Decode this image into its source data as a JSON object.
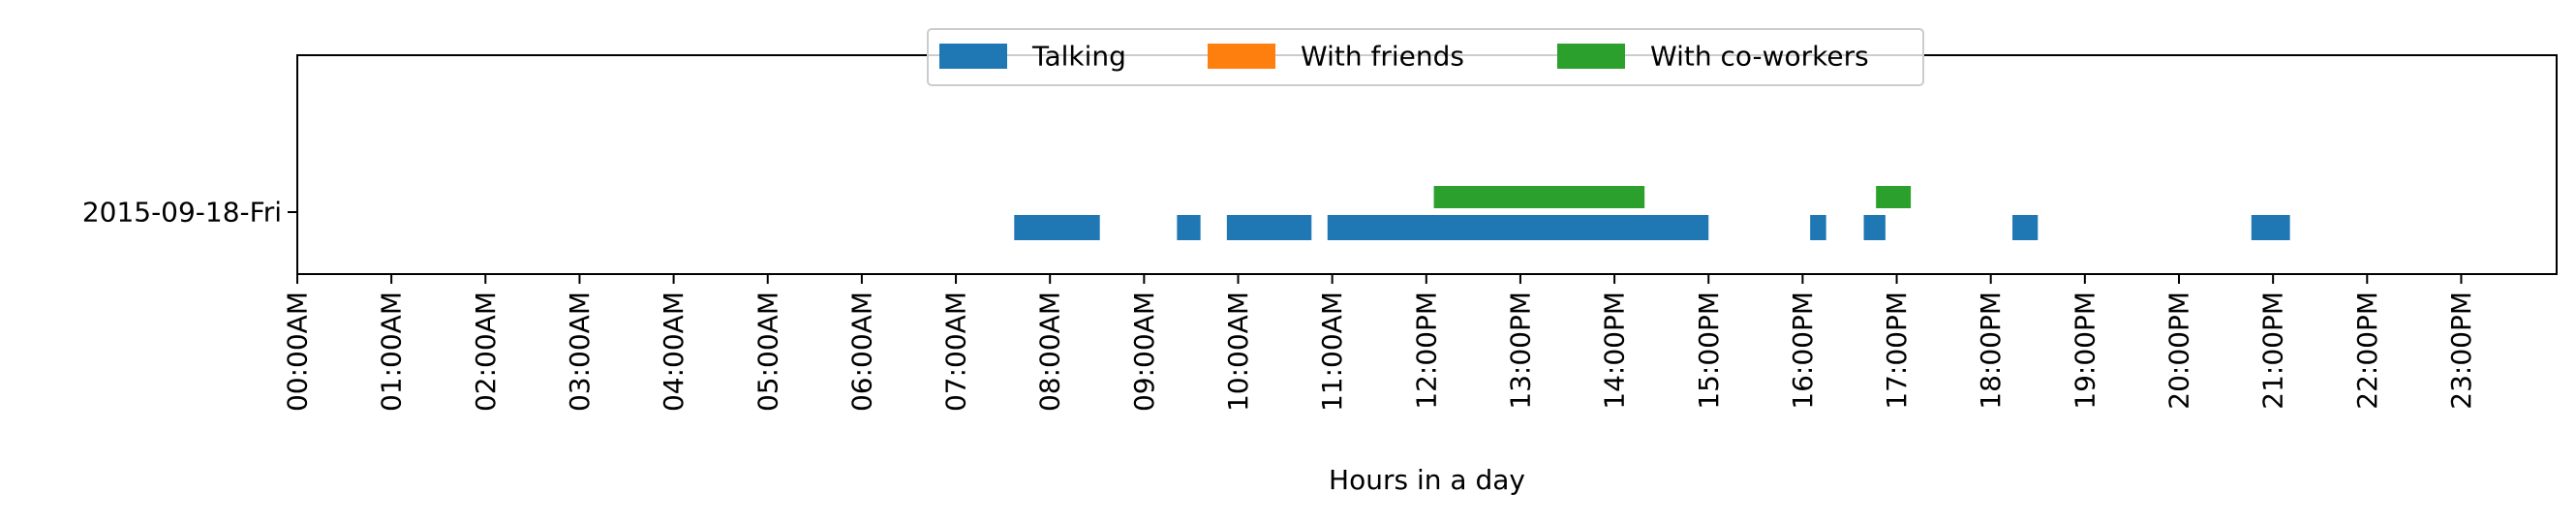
{
  "chart_data": {
    "type": "timeline",
    "xlabel": "Hours in a day",
    "ylabel": "",
    "xlim": [
      0,
      24
    ],
    "x_unit": "hour of day",
    "row_label": "2015-09-18-Fri",
    "tick_labels": [
      "00:00AM",
      "01:00AM",
      "02:00AM",
      "03:00AM",
      "04:00AM",
      "05:00AM",
      "06:00AM",
      "07:00AM",
      "08:00AM",
      "09:00AM",
      "10:00AM",
      "11:00AM",
      "12:00PM",
      "13:00PM",
      "14:00PM",
      "15:00PM",
      "16:00PM",
      "17:00PM",
      "18:00PM",
      "19:00PM",
      "20:00PM",
      "21:00PM",
      "22:00PM",
      "23:00PM"
    ],
    "legend": {
      "placement": "top-center"
    },
    "grid": false,
    "series": [
      {
        "name": "Talking",
        "color": "#1f77b4",
        "intervals": [
          [
            7.62,
            8.53
          ],
          [
            9.35,
            9.6
          ],
          [
            9.88,
            10.78
          ],
          [
            10.95,
            15.0
          ],
          [
            16.08,
            16.25
          ],
          [
            16.65,
            16.88
          ],
          [
            18.23,
            18.5
          ],
          [
            20.77,
            21.18
          ]
        ]
      },
      {
        "name": "With friends",
        "color": "#ff7f0e",
        "intervals": []
      },
      {
        "name": "With co-workers",
        "color": "#2ca02c",
        "intervals": [
          [
            12.08,
            14.32
          ],
          [
            16.78,
            17.15
          ]
        ]
      }
    ]
  }
}
